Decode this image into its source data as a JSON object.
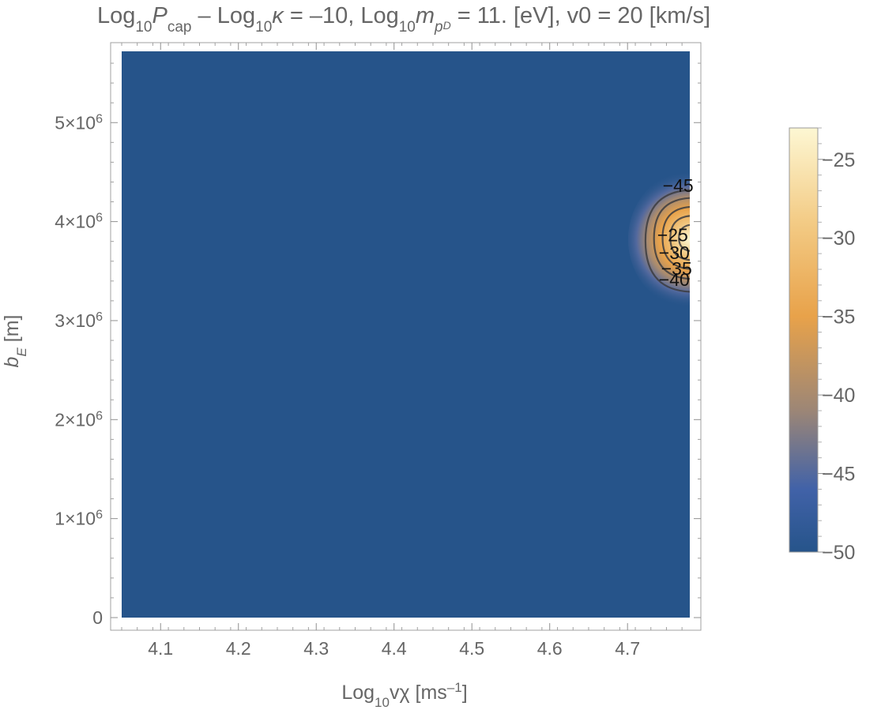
{
  "chart_data": {
    "type": "heatmap",
    "title": {
      "p1": "Log",
      "s1": "10",
      "p2": "P",
      "s2": "cap",
      "p3": " – Log",
      "s3": "10",
      "p4": "κ",
      "p5": " = –10, Log",
      "s4": "10",
      "p6": "m",
      "s5": "p",
      "s6": "D",
      "p7": " = 11. [eV], v0 = 20 [km/s]"
    },
    "xlabel": {
      "p1": "Log",
      "s1": "10",
      "p2": "vχ [ms",
      "s2": "–1",
      "p3": "]"
    },
    "ylabel": {
      "p1": "b",
      "s1": "E",
      "p2": " [m]"
    },
    "xlim": [
      4.05,
      4.78
    ],
    "ylim": [
      0,
      5720000
    ],
    "x_ticks": [
      {
        "value": 4.1,
        "label": "4.1"
      },
      {
        "value": 4.2,
        "label": "4.2"
      },
      {
        "value": 4.3,
        "label": "4.3"
      },
      {
        "value": 4.4,
        "label": "4.4"
      },
      {
        "value": 4.5,
        "label": "4.5"
      },
      {
        "value": 4.6,
        "label": "4.6"
      },
      {
        "value": 4.7,
        "label": "4.7"
      }
    ],
    "y_ticks": [
      {
        "value": 0,
        "label": "0",
        "exp": ""
      },
      {
        "value": 1000000,
        "label": "1×10",
        "exp": "6"
      },
      {
        "value": 2000000,
        "label": "2×10",
        "exp": "6"
      },
      {
        "value": 3000000,
        "label": "3×10",
        "exp": "6"
      },
      {
        "value": 4000000,
        "label": "4×10",
        "exp": "6"
      },
      {
        "value": 5000000,
        "label": "5×10",
        "exp": "6"
      }
    ],
    "colorbar": {
      "range": [
        -50,
        -23
      ],
      "ticks": [
        {
          "value": -25,
          "label": "−25"
        },
        {
          "value": -30,
          "label": "−30"
        },
        {
          "value": -35,
          "label": "−35"
        },
        {
          "value": -40,
          "label": "−40"
        },
        {
          "value": -45,
          "label": "−45"
        },
        {
          "value": -50,
          "label": "−50"
        }
      ],
      "stops": [
        {
          "value": -50,
          "color": "#26548a"
        },
        {
          "value": -46,
          "color": "#4162a8"
        },
        {
          "value": -41,
          "color": "#9c8676"
        },
        {
          "value": -35,
          "color": "#e8a24a"
        },
        {
          "value": -29,
          "color": "#f3cb85"
        },
        {
          "value": -23,
          "color": "#fdf7d3"
        }
      ]
    },
    "background_color": "#26548a",
    "peak": {
      "x": 4.78,
      "y": 3820000,
      "value": -23
    },
    "contours": [
      {
        "level": -45,
        "label": "−45",
        "x_min": 4.723,
        "y_low": 3290000,
        "y_high": 4320000,
        "label_x": 4.765,
        "label_y": 4350000
      },
      {
        "level": -40,
        "label": "−40",
        "x_min": 4.734,
        "y_low": 3420000,
        "y_high": 4240000,
        "label_x": 4.76,
        "label_y": 3400000
      },
      {
        "level": -35,
        "label": "−35",
        "x_min": 4.745,
        "y_low": 3520000,
        "y_high": 4150000,
        "label_x": 4.763,
        "label_y": 3510000
      },
      {
        "level": -30,
        "label": "−30",
        "x_min": 4.755,
        "y_low": 3610000,
        "y_high": 4060000,
        "label_x": 4.76,
        "label_y": 3670000
      },
      {
        "level": -25,
        "label": "−25",
        "x_min": 4.766,
        "y_low": 3700000,
        "y_high": 3970000,
        "label_x": 4.758,
        "label_y": 3850000
      }
    ]
  }
}
